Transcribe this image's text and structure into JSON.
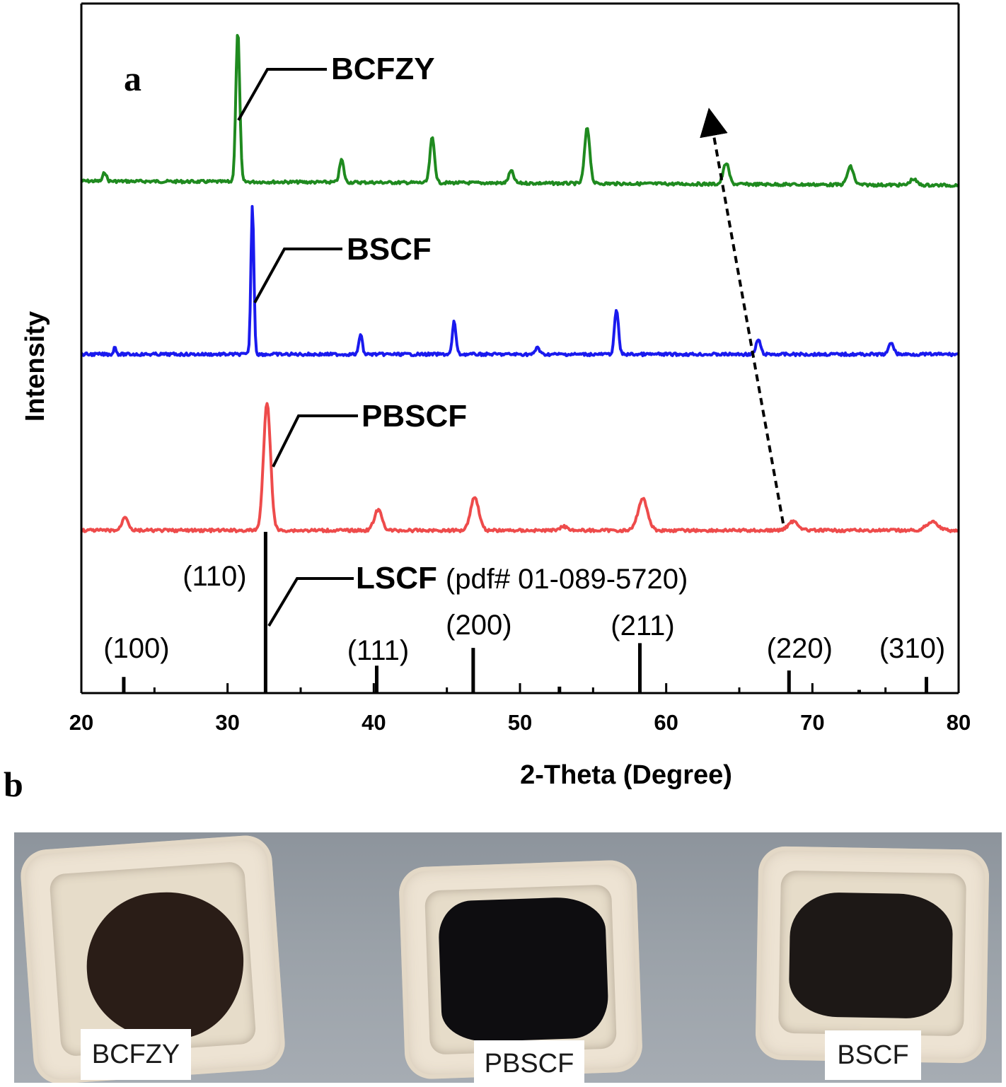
{
  "panel_a_letter": "a",
  "panel_b_letter": "b",
  "chart_data": {
    "type": "line",
    "title": "",
    "xlabel": "2-Theta (Degree)",
    "ylabel": "Intensity",
    "xlim": [
      20,
      80
    ],
    "xticks": [
      20,
      30,
      40,
      50,
      60,
      70,
      80
    ],
    "series": [
      {
        "name": "BCFZY",
        "color": "#1f8a1f",
        "peaks": [
          {
            "x": 21.6,
            "h": 0.06
          },
          {
            "x": 30.7,
            "h": 1.0
          },
          {
            "x": 37.8,
            "h": 0.15
          },
          {
            "x": 44.0,
            "h": 0.3
          },
          {
            "x": 49.4,
            "h": 0.08
          },
          {
            "x": 54.6,
            "h": 0.37
          },
          {
            "x": 64.1,
            "h": 0.14
          },
          {
            "x": 72.6,
            "h": 0.12
          },
          {
            "x": 76.9,
            "h": 0.04
          }
        ]
      },
      {
        "name": "BSCF",
        "color": "#1a1aee",
        "peaks": [
          {
            "x": 22.3,
            "h": 0.05
          },
          {
            "x": 31.7,
            "h": 1.0
          },
          {
            "x": 39.1,
            "h": 0.14
          },
          {
            "x": 45.5,
            "h": 0.22
          },
          {
            "x": 51.2,
            "h": 0.05
          },
          {
            "x": 56.6,
            "h": 0.3
          },
          {
            "x": 66.3,
            "h": 0.1
          },
          {
            "x": 75.4,
            "h": 0.08
          }
        ]
      },
      {
        "name": "PBSCF",
        "color": "#ee4b4b",
        "peaks": [
          {
            "x": 23.0,
            "h": 0.11
          },
          {
            "x": 32.7,
            "h": 1.0
          },
          {
            "x": 40.3,
            "h": 0.16
          },
          {
            "x": 46.9,
            "h": 0.26
          },
          {
            "x": 53.0,
            "h": 0.03
          },
          {
            "x": 58.4,
            "h": 0.25
          },
          {
            "x": 68.7,
            "h": 0.07
          },
          {
            "x": 78.2,
            "h": 0.07
          }
        ]
      }
    ],
    "reference": {
      "name": "LSCF",
      "note": "(pdf# 01-089-5720)",
      "lines": [
        {
          "x": 22.9,
          "h": 0.1,
          "hkl": "(100)"
        },
        {
          "x": 32.6,
          "h": 1.0,
          "hkl": "(110)"
        },
        {
          "x": 40.2,
          "h": 0.17,
          "hkl": "(111)"
        },
        {
          "x": 46.8,
          "h": 0.28,
          "hkl": "(200)"
        },
        {
          "x": 52.7,
          "h": 0.04,
          "hkl": ""
        },
        {
          "x": 58.2,
          "h": 0.31,
          "hkl": "(211)"
        },
        {
          "x": 68.4,
          "h": 0.14,
          "hkl": "(220)"
        },
        {
          "x": 73.2,
          "h": 0.02,
          "hkl": ""
        },
        {
          "x": 77.8,
          "h": 0.1,
          "hkl": "(310)"
        }
      ]
    },
    "shift_arrow": {
      "from_x": 68.0,
      "to_x": 62.6
    }
  },
  "photo": {
    "samples": [
      {
        "label": "BCFZY",
        "powder_color": "#2a1d17"
      },
      {
        "label": "PBSCF",
        "powder_color": "#0e0d10"
      },
      {
        "label": "BSCF",
        "powder_color": "#1d1816"
      }
    ]
  }
}
